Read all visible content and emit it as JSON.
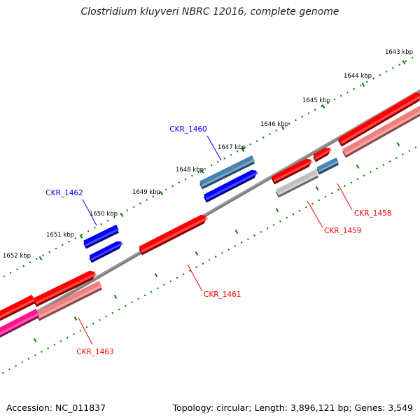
{
  "title": "Clostridium kluyveri NBRC 12016, complete genome",
  "accession": "Accession: NC_011837",
  "summary": "Topology: circular; Length: 3,896,121 bp; Genes: 3,549",
  "colors": {
    "forward_cds": "#ff0000",
    "forward_cds_light": "#f08080",
    "forward_rna": "#ff1493",
    "reverse_cds": "#0000ff",
    "reverse_cds_alt": "#4682b4",
    "pseudo_gray": "#c0c0c0",
    "backbone": "#808080",
    "tick": "#008000"
  },
  "ticks": [
    {
      "label": "1643 kbp"
    },
    {
      "label": "1644 kbp"
    },
    {
      "label": "1645 kbp"
    },
    {
      "label": "1646 kbp"
    },
    {
      "label": "1647 kbp"
    },
    {
      "label": "1648 kbp"
    },
    {
      "label": "1649 kbp"
    },
    {
      "label": "1650 kbp"
    },
    {
      "label": "1651 kbp"
    },
    {
      "label": "1652 kbp"
    }
  ],
  "genes": [
    {
      "label": "CKR_1458",
      "strand": "forward"
    },
    {
      "label": "CKR_1459",
      "strand": "forward"
    },
    {
      "label": "CKR_1460",
      "strand": "reverse"
    },
    {
      "label": "CKR_1461",
      "strand": "forward"
    },
    {
      "label": "CKR_1462",
      "strand": "reverse"
    },
    {
      "label": "CKR_1463",
      "strand": "forward"
    }
  ]
}
